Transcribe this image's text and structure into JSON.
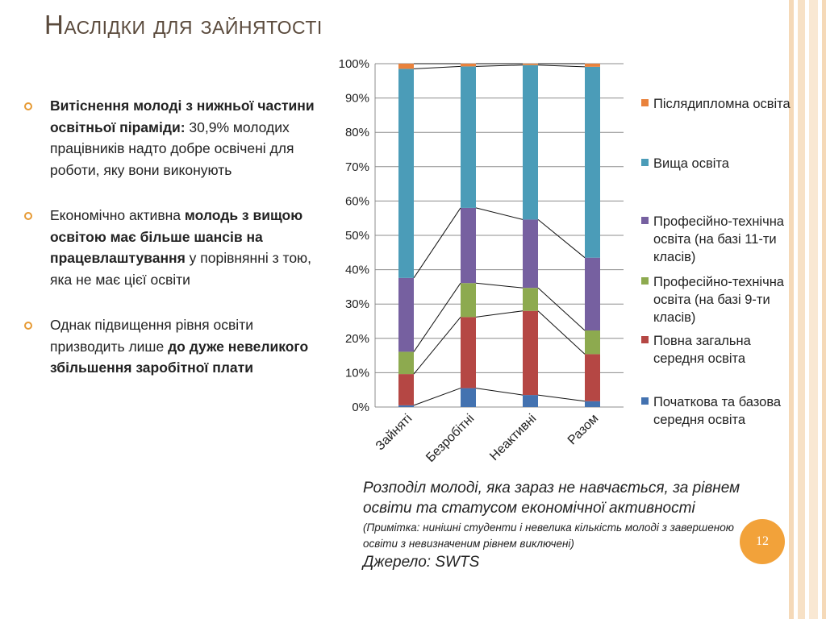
{
  "slide": {
    "title": "Наслідки для зайнятості",
    "page_number": "12",
    "accent_color": "#f2a23a"
  },
  "bullets": [
    {
      "segments": [
        {
          "text": "Витіснення молоді з нижньої частини освітньої піраміди:",
          "bold": true
        },
        {
          "text": " 30,9% молодих працівників надто добре освічені для роботи, яку вони виконують",
          "bold": false
        }
      ]
    },
    {
      "segments": [
        {
          "text": "Економічно активна ",
          "bold": false
        },
        {
          "text": "молодь з вищою освітою має більше шансів на працевлаштування",
          "bold": true
        },
        {
          "text": " у порівнянні з тою, яка не має цієї освіти",
          "bold": false
        }
      ]
    },
    {
      "segments": [
        {
          "text": "Однак підвищення рівня освіти призводить лише ",
          "bold": false
        },
        {
          "text": "до дуже невеликого збільшення заробітної плати",
          "bold": true
        }
      ]
    }
  ],
  "caption": {
    "main": "Розподіл молоді, яка зараз не навчається, за рівнем освіти та статусом економічної активності",
    "note": "(Примітка: нинішні студенти і невелика кількість молоді з завершеною освіти з невизначеним рівнем виключені)",
    "source": "Джерело: SWTS"
  },
  "chart_data": {
    "type": "bar",
    "stacked": true,
    "percent": true,
    "categories": [
      "Зайняті",
      "Безробітні",
      "Неактивні",
      "Разом"
    ],
    "y_ticks": [
      "0%",
      "10%",
      "20%",
      "30%",
      "40%",
      "50%",
      "60%",
      "70%",
      "80%",
      "90%",
      "100%"
    ],
    "ylim": [
      0,
      100
    ],
    "grid": true,
    "legend_position": "right",
    "series_lines": true,
    "series": [
      {
        "name": "Початкова та базова середня освіта",
        "color": "#4372b0",
        "values": [
          0.5,
          5.5,
          3.5,
          1.7
        ]
      },
      {
        "name": "Повна загальна середня освіта",
        "color": "#b54744",
        "values": [
          9.1,
          20.7,
          24.5,
          13.7
        ]
      },
      {
        "name": "Професійно-технічна освіта (на базі 9-ти класів)",
        "color": "#8daa4f",
        "values": [
          6.5,
          9.9,
          6.7,
          6.9
        ]
      },
      {
        "name": "Професійно-технічна освіта (на базі 11-ти класів)",
        "color": "#7660a0",
        "values": [
          21.5,
          21.9,
          19.9,
          21.2
        ]
      },
      {
        "name": "Вища освіта",
        "color": "#4b9cb8",
        "values": [
          60.9,
          41.2,
          45.0,
          55.6
        ]
      },
      {
        "name": "Післядипломна освіта",
        "color": "#e9823c",
        "values": [
          1.5,
          0.8,
          0.4,
          0.9
        ]
      }
    ]
  }
}
